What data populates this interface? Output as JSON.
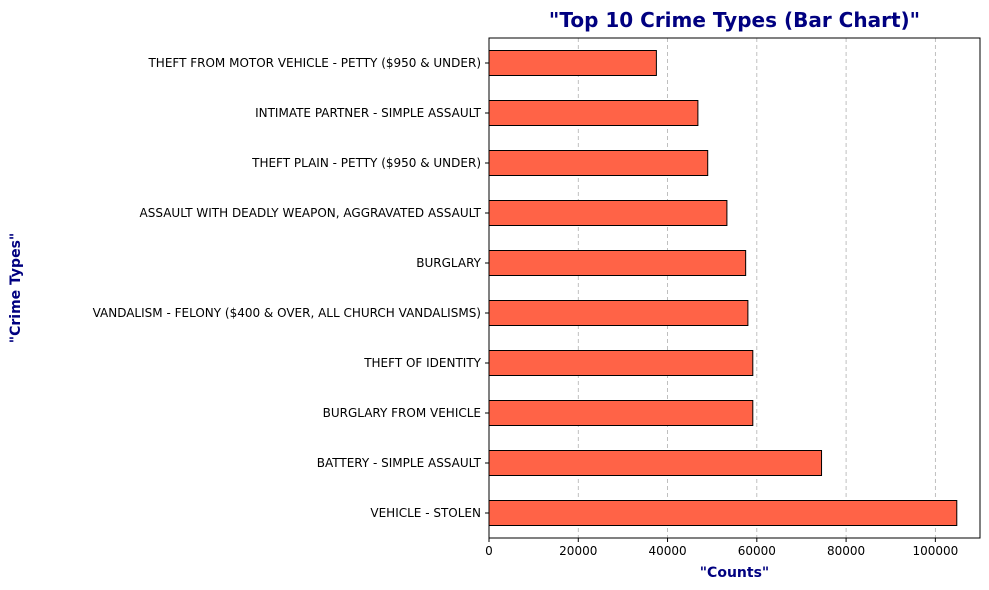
{
  "chart_data": {
    "type": "bar",
    "orientation": "horizontal",
    "title": "\"Top 10 Crime Types (Bar Chart)\"",
    "xlabel": "\"Counts\"",
    "ylabel": "\"Crime Types\"",
    "categories": [
      "VEHICLE - STOLEN",
      "BATTERY - SIMPLE ASSAULT",
      "BURGLARY FROM VEHICLE",
      "THEFT OF IDENTITY",
      "VANDALISM - FELONY ($400 & OVER, ALL CHURCH VANDALISMS)",
      "BURGLARY",
      "ASSAULT WITH DEADLY WEAPON, AGGRAVATED ASSAULT",
      "THEFT PLAIN - PETTY ($950 & UNDER)",
      "INTIMATE PARTNER - SIMPLE ASSAULT",
      "THEFT FROM MOTOR VEHICLE - PETTY ($950 & UNDER)"
    ],
    "values": [
      104800,
      74500,
      59100,
      59100,
      58000,
      57500,
      53300,
      49000,
      46800,
      37500
    ],
    "xlim": [
      0,
      110000
    ],
    "xticks": [
      0,
      20000,
      40000,
      60000,
      80000,
      100000
    ],
    "grid": "x-dashed",
    "bar_color": "#ff6347",
    "bar_edge_color": "#000000",
    "title_color": "#000080",
    "label_color": "#000080"
  }
}
